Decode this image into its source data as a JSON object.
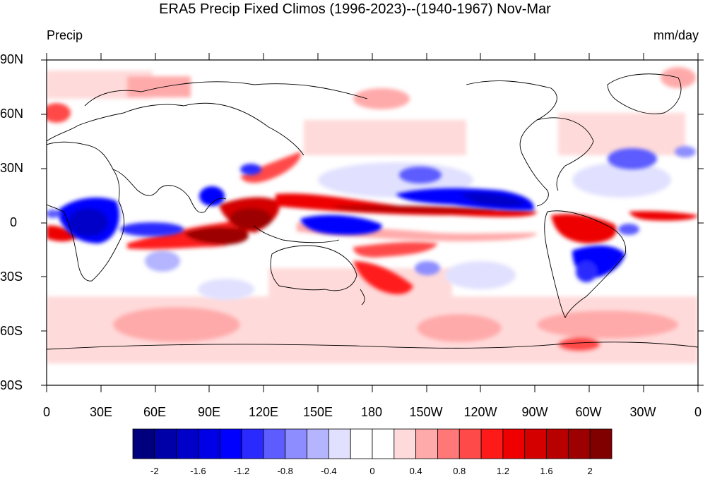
{
  "title": "ERA5 Precip Fixed Climos (1996-2023)--(1940-1967) Nov-Mar",
  "left_label": "Precip",
  "right_label": "mm/day",
  "lat_labels": [
    "90N",
    "60N",
    "30N",
    "0",
    "30S",
    "60S",
    "90S"
  ],
  "lon_labels": [
    "0",
    "30E",
    "60E",
    "90E",
    "120E",
    "150E",
    "180",
    "150W",
    "120W",
    "90W",
    "60W",
    "30W",
    "0"
  ],
  "colorbar": {
    "colors": [
      "#00007f",
      "#0000a8",
      "#0000c8",
      "#0000e6",
      "#0000ff",
      "#2a2aff",
      "#5c5cff",
      "#8d8dff",
      "#b4b4ff",
      "#e1e1ff",
      "#ffffff",
      "#ffffff",
      "#ffdada",
      "#ffaaaa",
      "#ff7777",
      "#ff4a4a",
      "#ff1a1a",
      "#ee0000",
      "#d40000",
      "#b80000",
      "#9c0000",
      "#800000"
    ],
    "tick_labels": [
      "-2",
      "-1.6",
      "-1.2",
      "-0.8",
      "-0.4",
      "0",
      "0.4",
      "0.8",
      "1.2",
      "1.6",
      "2"
    ]
  },
  "colors": {
    "strong_pos": "#9c0000",
    "pos": "#ff1a1a",
    "weak_pos": "#ffdada",
    "strong_neg": "#0000c8",
    "neg": "#2a2aff",
    "weak_neg": "#e1e1ff"
  }
}
